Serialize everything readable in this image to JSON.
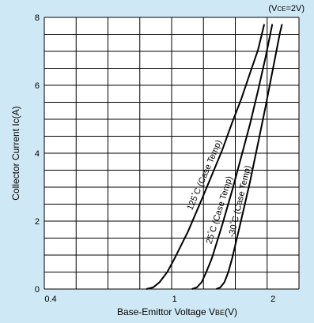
{
  "chart_data": {
    "type": "line",
    "condition": "(Vce=2V)",
    "condition_parts": {
      "prefix": "(V",
      "sub": "CE",
      "suffix": "=2V)"
    },
    "xlabel": "Base-Emittor Voltage V",
    "xlabel_sub": "BE",
    "xlabel_unit": "(V)",
    "ylabel": "Collector Current Ic(A)",
    "x_scale": "log",
    "xlim": [
      0.4,
      2.4
    ],
    "ylim": [
      0,
      8
    ],
    "x_tick_labels": [
      {
        "value": 0.4,
        "label": "0.4"
      },
      {
        "value": 1,
        "label": "1"
      },
      {
        "value": 2,
        "label": "2"
      }
    ],
    "y_tick_labels": [
      {
        "value": 0,
        "label": "0"
      },
      {
        "value": 2,
        "label": "2"
      },
      {
        "value": 4,
        "label": "4"
      },
      {
        "value": 6,
        "label": "6"
      },
      {
        "value": 8,
        "label": "8"
      }
    ],
    "grid": true,
    "series": [
      {
        "name": "125°C (Case Temp)",
        "label_parts": {
          "temp": "125",
          "deg": "°",
          "rest": "C (Case Temp)"
        },
        "points": [
          [
            0.82,
            0
          ],
          [
            0.86,
            0.05
          ],
          [
            0.9,
            0.2
          ],
          [
            0.95,
            0.5
          ],
          [
            1.0,
            0.9
          ],
          [
            1.1,
            1.7
          ],
          [
            1.2,
            2.55
          ],
          [
            1.3,
            3.35
          ],
          [
            1.4,
            4.1
          ],
          [
            1.5,
            4.9
          ],
          [
            1.6,
            5.6
          ],
          [
            1.7,
            6.35
          ],
          [
            1.8,
            7.05
          ],
          [
            1.88,
            7.8
          ]
        ]
      },
      {
        "name": "25°C (Case Temp)",
        "label_parts": {
          "temp": "25",
          "deg": "°",
          "rest": "C (Case Temp)"
        },
        "points": [
          [
            1.13,
            0
          ],
          [
            1.17,
            0.05
          ],
          [
            1.21,
            0.2
          ],
          [
            1.25,
            0.5
          ],
          [
            1.3,
            0.9
          ],
          [
            1.4,
            1.9
          ],
          [
            1.5,
            2.9
          ],
          [
            1.6,
            3.9
          ],
          [
            1.7,
            4.85
          ],
          [
            1.8,
            5.85
          ],
          [
            1.9,
            6.85
          ],
          [
            1.99,
            7.8
          ]
        ]
      },
      {
        "name": "-30°C (Case Temp)",
        "label_parts": {
          "temp": "-30",
          "deg": "°",
          "rest": "C (Case Temp)"
        },
        "points": [
          [
            1.34,
            0
          ],
          [
            1.38,
            0.05
          ],
          [
            1.42,
            0.2
          ],
          [
            1.46,
            0.5
          ],
          [
            1.5,
            0.9
          ],
          [
            1.6,
            2.05
          ],
          [
            1.7,
            3.15
          ],
          [
            1.8,
            4.3
          ],
          [
            1.9,
            5.4
          ],
          [
            2.0,
            6.5
          ],
          [
            2.1,
            7.55
          ],
          [
            2.13,
            7.8
          ]
        ]
      }
    ]
  }
}
